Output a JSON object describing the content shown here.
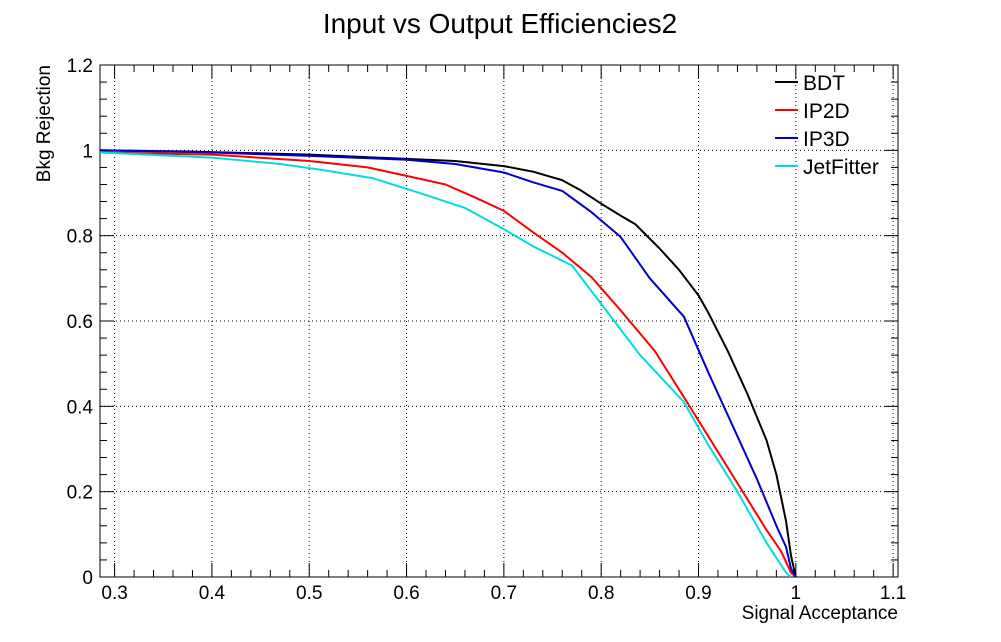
{
  "chart_data": {
    "type": "line",
    "title": "Input vs Output Efficiencies2",
    "xlabel": "Signal Acceptance",
    "ylabel": "Bkg Rejection",
    "xlim": [
      0.285,
      1.105
    ],
    "ylim": [
      0,
      1.2
    ],
    "x_ticks": [
      0.3,
      0.4,
      0.5,
      0.6,
      0.7,
      0.8,
      0.9,
      1.0,
      1.1
    ],
    "x_tick_labels": [
      "0.3",
      "0.4",
      "0.5",
      "0.6",
      "0.7",
      "0.8",
      "0.9",
      "1",
      "1.1"
    ],
    "y_ticks": [
      0,
      0.2,
      0.4,
      0.6,
      0.8,
      1.0,
      1.2
    ],
    "y_tick_labels": [
      "0",
      "0.2",
      "0.4",
      "0.6",
      "0.8",
      "1",
      "1.2"
    ],
    "grid": true,
    "legend_position": "top-right",
    "series": [
      {
        "name": "BDT",
        "color": "#000000",
        "x": [
          0.285,
          0.38,
          0.5,
          0.6,
          0.65,
          0.7,
          0.73,
          0.76,
          0.78,
          0.8,
          0.82,
          0.835,
          0.86,
          0.88,
          0.9,
          0.91,
          0.93,
          0.95,
          0.97,
          0.98,
          0.99,
          0.995,
          1.0
        ],
        "y": [
          1.0,
          0.997,
          0.99,
          0.98,
          0.975,
          0.963,
          0.95,
          0.93,
          0.905,
          0.875,
          0.847,
          0.827,
          0.77,
          0.72,
          0.66,
          0.62,
          0.53,
          0.43,
          0.32,
          0.24,
          0.13,
          0.05,
          0.0
        ]
      },
      {
        "name": "IP2D",
        "color": "#ff0000",
        "x": [
          0.285,
          0.4,
          0.5,
          0.56,
          0.6,
          0.64,
          0.67,
          0.7,
          0.73,
          0.76,
          0.79,
          0.82,
          0.855,
          0.88,
          0.91,
          0.94,
          0.97,
          0.985,
          0.995,
          1.0
        ],
        "y": [
          0.995,
          0.99,
          0.975,
          0.96,
          0.94,
          0.92,
          0.89,
          0.858,
          0.808,
          0.76,
          0.703,
          0.625,
          0.53,
          0.44,
          0.33,
          0.22,
          0.11,
          0.06,
          0.01,
          0.0
        ]
      },
      {
        "name": "IP3D",
        "color": "#0000cc",
        "x": [
          0.285,
          0.4,
          0.5,
          0.6,
          0.65,
          0.7,
          0.73,
          0.76,
          0.79,
          0.82,
          0.85,
          0.885,
          0.91,
          0.94,
          0.96,
          0.98,
          0.99,
          0.995,
          1.0
        ],
        "y": [
          1.0,
          0.995,
          0.987,
          0.978,
          0.968,
          0.948,
          0.925,
          0.905,
          0.855,
          0.797,
          0.7,
          0.61,
          0.48,
          0.33,
          0.23,
          0.12,
          0.07,
          0.02,
          0.0
        ]
      },
      {
        "name": "JetFitter",
        "color": "#00dddd",
        "x": [
          0.285,
          0.4,
          0.47,
          0.51,
          0.565,
          0.62,
          0.66,
          0.7,
          0.73,
          0.77,
          0.8,
          0.84,
          0.885,
          0.91,
          0.94,
          0.97,
          0.99,
          0.995
        ],
        "y": [
          0.995,
          0.983,
          0.968,
          0.955,
          0.935,
          0.895,
          0.865,
          0.815,
          0.775,
          0.73,
          0.64,
          0.52,
          0.41,
          0.31,
          0.2,
          0.08,
          0.01,
          0.0
        ]
      }
    ]
  }
}
